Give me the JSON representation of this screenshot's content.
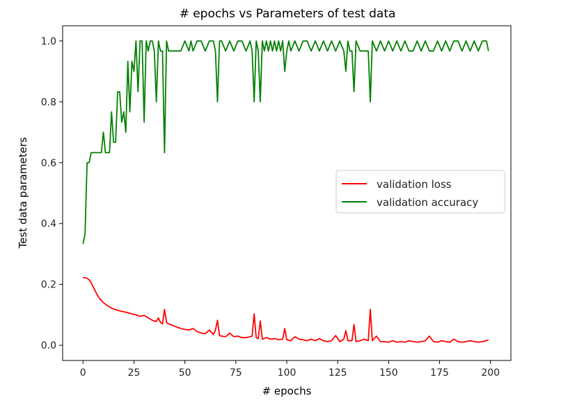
{
  "chart_data": {
    "type": "line",
    "title": "# epochs vs Parameters of test data",
    "xlabel": "# epochs",
    "ylabel": "Test data parameters",
    "xlim": [
      -10,
      210
    ],
    "ylim": [
      -0.05,
      1.05
    ],
    "x_ticks": [
      0,
      25,
      50,
      75,
      100,
      125,
      150,
      175,
      200
    ],
    "x_tick_labels": [
      "0",
      "25",
      "50",
      "75",
      "100",
      "125",
      "150",
      "175",
      "200"
    ],
    "y_ticks": [
      0.0,
      0.2,
      0.4,
      0.6,
      0.8,
      1.0
    ],
    "y_tick_labels": [
      "0.0",
      "0.2",
      "0.4",
      "0.6",
      "0.8",
      "1.0"
    ],
    "grid": false,
    "legend_position": "center-right",
    "series": [
      {
        "name": "validation loss",
        "color": "#ff0000",
        "x": [
          0,
          1,
          2,
          3,
          4,
          5,
          6,
          7,
          8,
          9,
          10,
          12,
          14,
          16,
          18,
          20,
          22,
          24,
          26,
          28,
          30,
          32,
          34,
          36,
          37,
          38,
          39,
          40,
          41,
          42,
          44,
          46,
          48,
          50,
          52,
          54,
          56,
          58,
          60,
          62,
          64,
          65,
          66,
          67,
          68,
          70,
          72,
          74,
          76,
          78,
          80,
          82,
          83,
          84,
          85,
          86,
          87,
          88,
          90,
          92,
          94,
          96,
          98,
          99,
          100,
          102,
          104,
          106,
          108,
          110,
          112,
          114,
          116,
          118,
          120,
          122,
          124,
          126,
          128,
          129,
          130,
          132,
          133,
          134,
          136,
          138,
          140,
          141,
          142,
          144,
          146,
          148,
          150,
          152,
          154,
          156,
          158,
          160,
          162,
          164,
          166,
          168,
          170,
          172,
          174,
          176,
          178,
          180,
          182,
          184,
          186,
          188,
          190,
          192,
          194,
          196,
          198,
          199
        ],
        "values": [
          0.222,
          0.222,
          0.22,
          0.215,
          0.205,
          0.192,
          0.178,
          0.165,
          0.155,
          0.147,
          0.14,
          0.13,
          0.122,
          0.117,
          0.113,
          0.11,
          0.107,
          0.103,
          0.1,
          0.095,
          0.098,
          0.09,
          0.082,
          0.078,
          0.09,
          0.075,
          0.07,
          0.118,
          0.075,
          0.07,
          0.065,
          0.06,
          0.055,
          0.052,
          0.05,
          0.055,
          0.045,
          0.04,
          0.038,
          0.05,
          0.035,
          0.05,
          0.082,
          0.032,
          0.03,
          0.028,
          0.04,
          0.028,
          0.03,
          0.025,
          0.025,
          0.028,
          0.03,
          0.103,
          0.025,
          0.022,
          0.08,
          0.02,
          0.025,
          0.02,
          0.022,
          0.018,
          0.02,
          0.055,
          0.018,
          0.015,
          0.028,
          0.02,
          0.018,
          0.015,
          0.02,
          0.015,
          0.022,
          0.015,
          0.012,
          0.015,
          0.032,
          0.012,
          0.02,
          0.048,
          0.015,
          0.015,
          0.068,
          0.012,
          0.015,
          0.02,
          0.015,
          0.118,
          0.015,
          0.03,
          0.012,
          0.012,
          0.01,
          0.015,
          0.01,
          0.012,
          0.01,
          0.015,
          0.012,
          0.01,
          0.012,
          0.015,
          0.03,
          0.012,
          0.01,
          0.015,
          0.012,
          0.01,
          0.02,
          0.012,
          0.01,
          0.012,
          0.015,
          0.012,
          0.01,
          0.012,
          0.015,
          0.018
        ]
      },
      {
        "name": "validation accuracy",
        "color": "#008000",
        "x": [
          0,
          1,
          2,
          3,
          4,
          5,
          6,
          7,
          8,
          9,
          10,
          11,
          12,
          13,
          14,
          15,
          16,
          17,
          18,
          19,
          20,
          21,
          22,
          23,
          24,
          25,
          26,
          27,
          28,
          29,
          30,
          31,
          32,
          33,
          34,
          35,
          36,
          37,
          38,
          39,
          40,
          41,
          42,
          43,
          44,
          46,
          48,
          50,
          52,
          53,
          54,
          56,
          58,
          60,
          62,
          64,
          65,
          66,
          67,
          68,
          70,
          72,
          74,
          76,
          78,
          80,
          82,
          83,
          84,
          85,
          86,
          87,
          88,
          89,
          90,
          91,
          92,
          93,
          94,
          95,
          96,
          97,
          98,
          99,
          100,
          101,
          102,
          104,
          106,
          108,
          110,
          112,
          114,
          116,
          118,
          120,
          122,
          124,
          126,
          128,
          129,
          130,
          131,
          132,
          133,
          134,
          136,
          138,
          140,
          141,
          142,
          144,
          146,
          148,
          150,
          152,
          154,
          156,
          158,
          160,
          162,
          164,
          166,
          168,
          170,
          172,
          174,
          176,
          178,
          180,
          182,
          184,
          186,
          188,
          190,
          192,
          194,
          196,
          198,
          199
        ],
        "values": [
          0.333,
          0.367,
          0.6,
          0.6,
          0.633,
          0.633,
          0.633,
          0.633,
          0.633,
          0.633,
          0.7,
          0.633,
          0.633,
          0.633,
          0.767,
          0.667,
          0.667,
          0.833,
          0.833,
          0.733,
          0.767,
          0.7,
          0.933,
          0.767,
          0.933,
          0.9,
          1.0,
          0.833,
          1.0,
          1.0,
          0.733,
          1.0,
          0.967,
          1.0,
          1.0,
          0.967,
          0.8,
          1.0,
          0.967,
          0.967,
          0.633,
          1.0,
          0.967,
          0.967,
          0.967,
          0.967,
          0.967,
          1.0,
          0.967,
          1.0,
          0.967,
          1.0,
          1.0,
          0.967,
          1.0,
          1.0,
          0.967,
          0.8,
          1.0,
          1.0,
          0.967,
          1.0,
          0.967,
          1.0,
          1.0,
          0.967,
          1.0,
          0.967,
          0.8,
          1.0,
          0.967,
          0.8,
          1.0,
          0.967,
          1.0,
          0.967,
          1.0,
          0.967,
          1.0,
          0.967,
          1.0,
          0.967,
          1.0,
          0.9,
          0.967,
          1.0,
          0.967,
          1.0,
          0.967,
          1.0,
          1.0,
          0.967,
          1.0,
          0.967,
          1.0,
          0.967,
          1.0,
          0.967,
          1.0,
          0.967,
          0.9,
          1.0,
          0.967,
          0.967,
          0.833,
          1.0,
          0.967,
          0.967,
          0.967,
          0.8,
          1.0,
          0.967,
          1.0,
          0.967,
          1.0,
          0.967,
          1.0,
          0.967,
          1.0,
          0.967,
          0.967,
          1.0,
          0.967,
          1.0,
          0.967,
          0.967,
          1.0,
          0.967,
          1.0,
          0.967,
          1.0,
          1.0,
          0.967,
          1.0,
          0.967,
          1.0,
          0.967,
          1.0,
          1.0,
          0.967
        ]
      }
    ]
  }
}
